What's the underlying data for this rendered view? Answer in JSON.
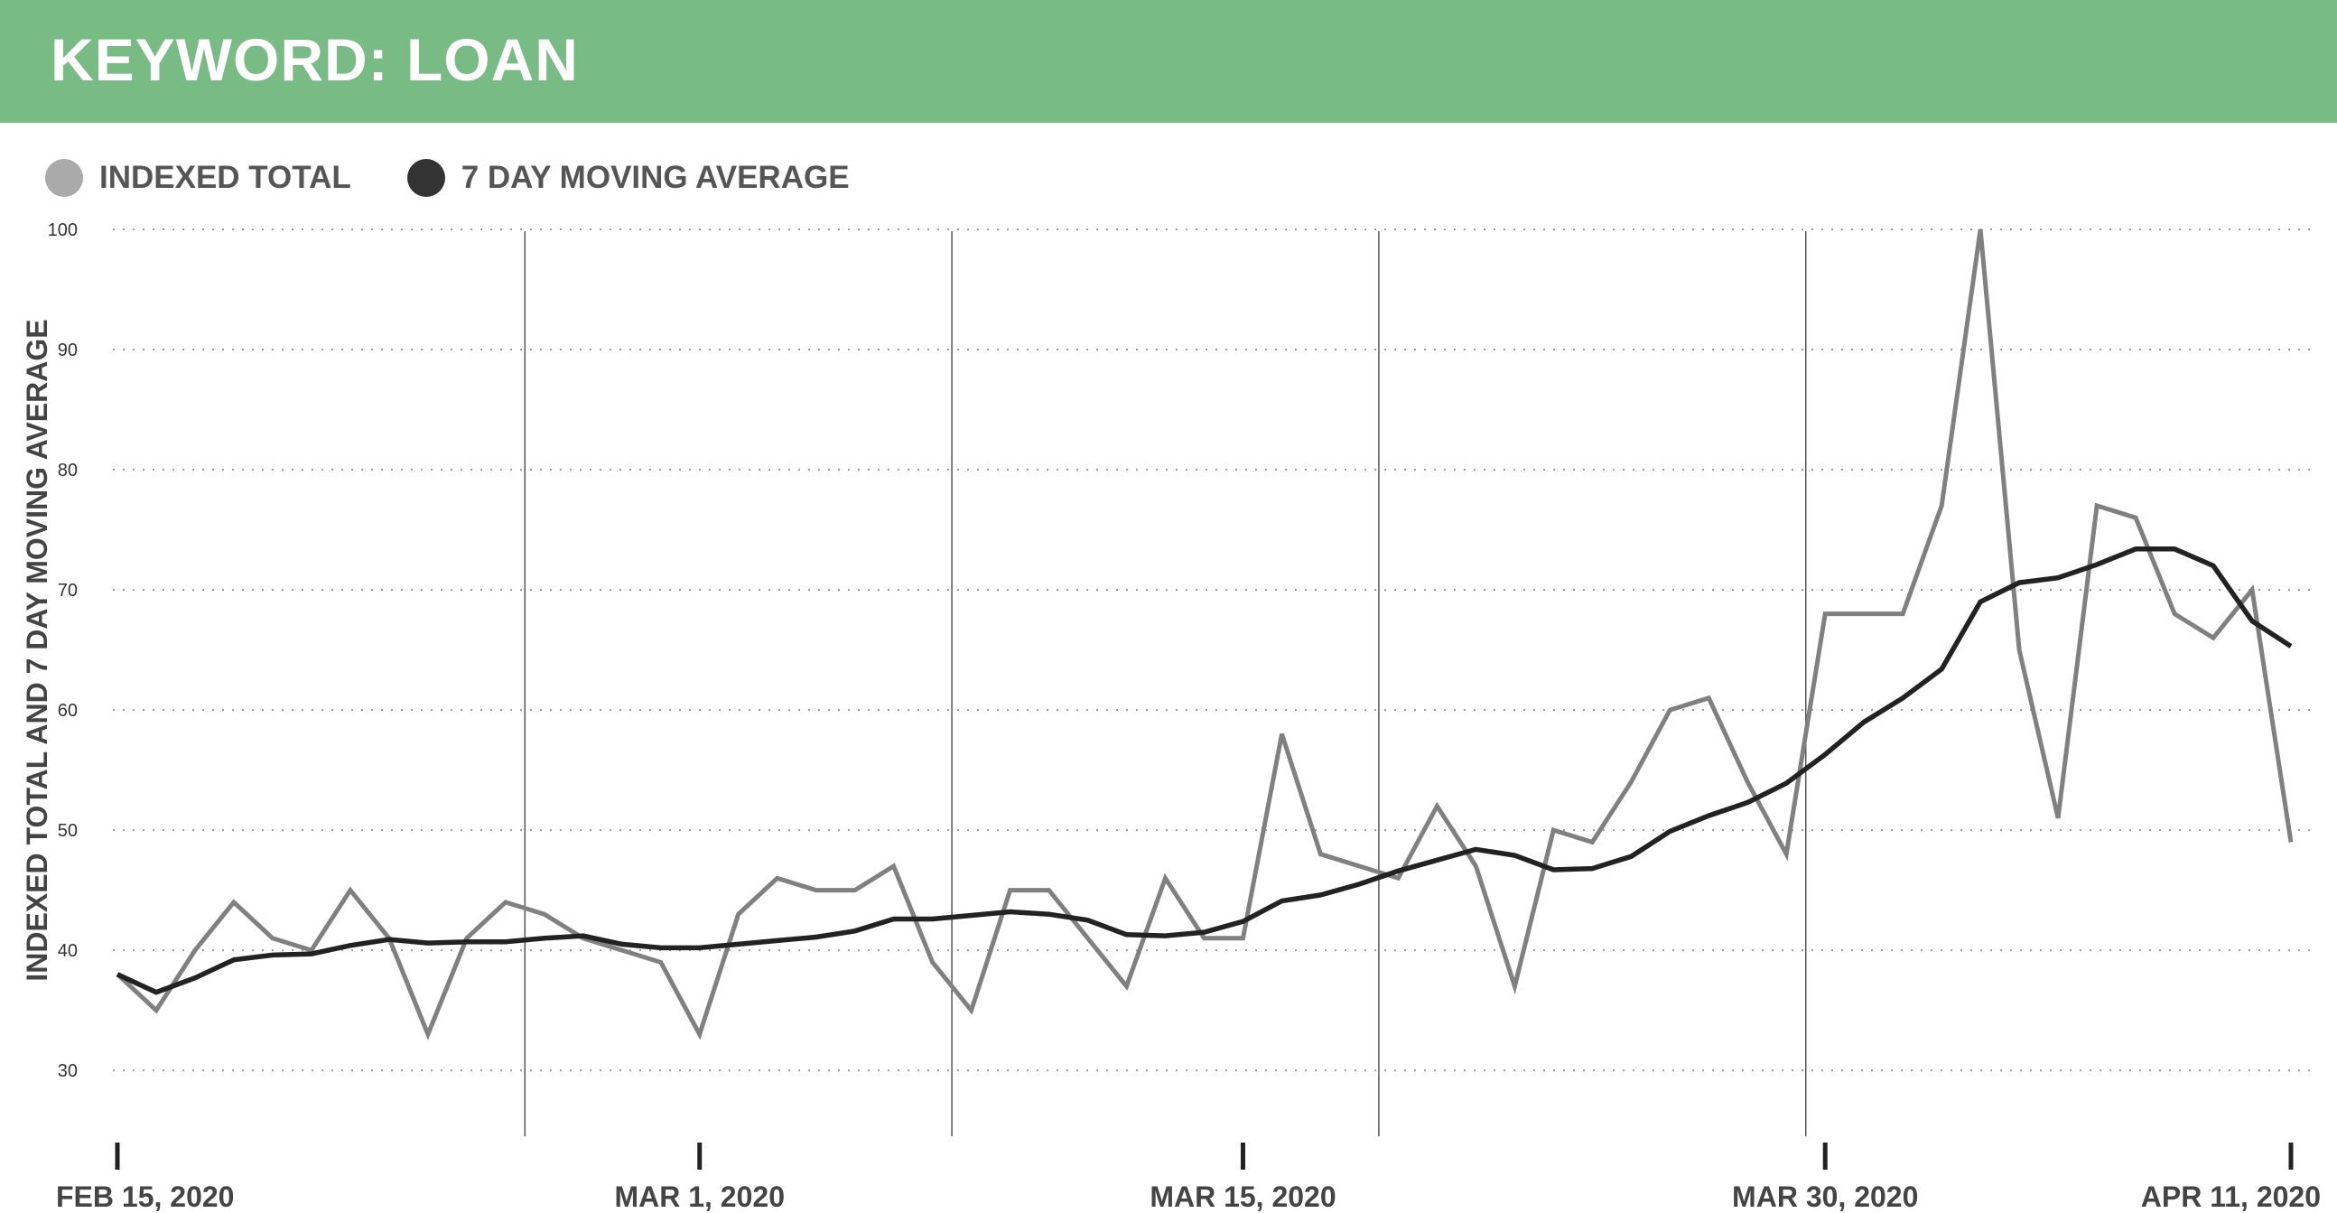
{
  "banner": {
    "title": "KEYWORD: LOAN",
    "color": "#78bb85"
  },
  "legend": [
    {
      "label": "INDEXED TOTAL",
      "color": "#aaaaaa"
    },
    {
      "label": "7 DAY MOVING AVERAGE",
      "color": "#333333"
    }
  ],
  "chart_data": {
    "type": "line",
    "ylabel": "INDEXED TOTAL AND 7 DAY MOVING AVERAGE",
    "ylim": [
      27,
      100
    ],
    "yticks": [
      30,
      40,
      50,
      60,
      70,
      80,
      90,
      100
    ],
    "grid": "horizontal dotted",
    "legend_position": "top-left",
    "x": [
      "2020-02-15",
      "2020-02-16",
      "2020-02-17",
      "2020-02-18",
      "2020-02-19",
      "2020-02-20",
      "2020-02-21",
      "2020-02-22",
      "2020-02-23",
      "2020-02-24",
      "2020-02-25",
      "2020-02-26",
      "2020-02-27",
      "2020-02-28",
      "2020-02-29",
      "2020-03-01",
      "2020-03-02",
      "2020-03-03",
      "2020-03-04",
      "2020-03-05",
      "2020-03-06",
      "2020-03-07",
      "2020-03-08",
      "2020-03-09",
      "2020-03-10",
      "2020-03-11",
      "2020-03-12",
      "2020-03-13",
      "2020-03-14",
      "2020-03-15",
      "2020-03-16",
      "2020-03-17",
      "2020-03-18",
      "2020-03-19",
      "2020-03-20",
      "2020-03-21",
      "2020-03-22",
      "2020-03-23",
      "2020-03-24",
      "2020-03-25",
      "2020-03-26",
      "2020-03-27",
      "2020-03-28",
      "2020-03-29",
      "2020-03-30",
      "2020-03-31",
      "2020-04-01",
      "2020-04-02",
      "2020-04-03",
      "2020-04-04",
      "2020-04-05",
      "2020-04-06",
      "2020-04-07",
      "2020-04-08",
      "2020-04-09",
      "2020-04-10",
      "2020-04-11"
    ],
    "xtick_labels": [
      {
        "label": "FEB 15, 2020",
        "index": 0
      },
      {
        "label": "MAR 1, 2020",
        "index": 15
      },
      {
        "label": "MAR 15, 2020",
        "index": 29
      },
      {
        "label": "MAR 30, 2020",
        "index": 44
      },
      {
        "label": "APR 11, 2020",
        "index": 56
      }
    ],
    "week_separators": [
      10,
      21,
      32,
      43
    ],
    "series": [
      {
        "name": "INDEXED TOTAL",
        "color": "#808080",
        "values": [
          38,
          35,
          40,
          44,
          41,
          40,
          45,
          41,
          33,
          41,
          44,
          43,
          41,
          40,
          39,
          33,
          43,
          46,
          45,
          45,
          47,
          39,
          35,
          45,
          45,
          41,
          37,
          46,
          41,
          41,
          58,
          48,
          47,
          46,
          52,
          47,
          37,
          50,
          49,
          54,
          60,
          61,
          54,
          48,
          68,
          68,
          68,
          77,
          100,
          65,
          51,
          77,
          76,
          68,
          66,
          70,
          49
        ]
      },
      {
        "name": "7 DAY MOVING AVERAGE",
        "color": "#222222",
        "values": [
          38,
          36.5,
          37.7,
          39.2,
          39.6,
          39.7,
          40.4,
          40.9,
          40.6,
          40.7,
          40.7,
          41,
          41.2,
          40.5,
          40.2,
          40.2,
          40.5,
          40.8,
          41.1,
          41.6,
          42.6,
          42.6,
          42.9,
          43.2,
          43,
          42.5,
          41.3,
          41.2,
          41.5,
          42.4,
          44.1,
          44.6,
          45.5,
          46.6,
          47.5,
          48.4,
          47.9,
          46.7,
          46.8,
          47.8,
          49.9,
          51.2,
          52.3,
          53.9,
          56.3,
          59,
          61,
          63.4,
          69,
          70.6,
          71,
          72.1,
          73.4,
          73.4,
          72,
          67.4,
          65.3
        ]
      }
    ]
  }
}
